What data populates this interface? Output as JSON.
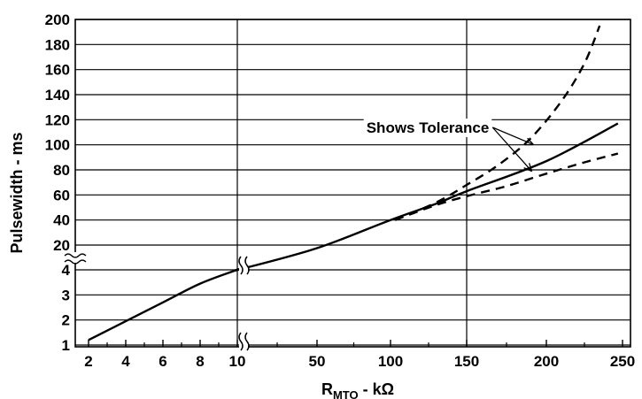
{
  "chart_data": {
    "type": "line",
    "title": "",
    "xlabel": "R",
    "xlabel_subscript": "MTO",
    "xlabel_suffix": " - kΩ",
    "ylabel": "Pulsewidth - ms",
    "x_scale": "piecewise (broken axis at 10)",
    "y_scale": "piecewise (broken axis between 4 and 20)",
    "xlim": [
      1.5,
      255
    ],
    "ylim": [
      0.9,
      200
    ],
    "x_ticks": [
      "2",
      "4",
      "6",
      "8",
      "10",
      "50",
      "100",
      "150",
      "200",
      "250"
    ],
    "y_ticks": [
      "1",
      "2",
      "3",
      "4",
      "20",
      "40",
      "60",
      "80",
      "100",
      "120",
      "140",
      "160",
      "180",
      "200"
    ],
    "grid": true,
    "legend": "none",
    "series": [
      {
        "style": "solid",
        "x": [
          2,
          4,
          6,
          8,
          10,
          11,
          50,
          100,
          130,
          150,
          200,
          247
        ],
        "y": [
          1.2,
          1.95,
          2.7,
          3.45,
          4.05,
          4.2,
          18,
          40,
          53,
          63,
          87,
          117
        ]
      },
      {
        "style": "dashed",
        "x": [
          103,
          130,
          150,
          170,
          190,
          210,
          225,
          235
        ],
        "y": [
          40,
          54,
          68,
          84,
          105,
          135,
          165,
          195
        ]
      },
      {
        "style": "dashed",
        "x": [
          103,
          130,
          150,
          175,
          200,
          225,
          247
        ],
        "y": [
          40,
          52,
          59,
          67,
          77,
          86,
          93
        ]
      }
    ],
    "annotations": [
      {
        "text": "Shows Tolerance"
      }
    ]
  }
}
